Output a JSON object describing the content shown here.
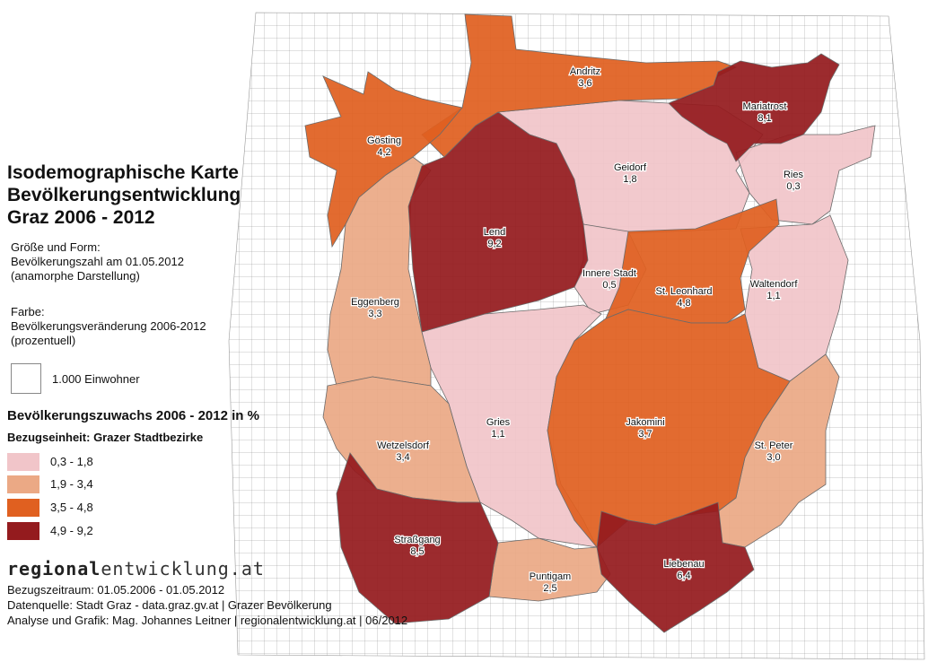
{
  "title": {
    "line1": "Isodemographische Karte",
    "line2": "Bevölkerungsentwicklung",
    "line3": "Graz 2006 - 2012"
  },
  "size_info": {
    "heading": "Größe und Form:",
    "line1": "Bevölkerungszahl am 01.05.2012",
    "line2": "(anamorphe Darstellung)"
  },
  "color_info": {
    "heading": "Farbe:",
    "line1": "Bevölkerungsveränderung 2006-2012",
    "line2": "(prozentuell)"
  },
  "scale": {
    "label": "1.000 Einwohner"
  },
  "legend": {
    "title": "Bevölkerungszuwachs 2006 - 2012 in %",
    "subtitle": "Bezugseinheit: Grazer Stadtbezirke",
    "classes": [
      {
        "label": "0,3 - 1,8",
        "color": "#f1c5c9"
      },
      {
        "label": "1,9 - 3,4",
        "color": "#eba985"
      },
      {
        "label": "3,5 - 4,8",
        "color": "#e06020"
      },
      {
        "label": "4,9 - 9,2",
        "color": "#941b1e"
      }
    ]
  },
  "brand": {
    "part1": "regional",
    "part2": "entwicklung.at"
  },
  "credits": {
    "period": "Bezugszeitraum: 01.05.2006 - 01.05.2012",
    "source": "Datenquelle: Stadt Graz - data.graz.gv.at | Grazer Bevölkerung",
    "author": "Analyse und Grafik: Mag. Johannes Leitner | regionalentwicklung.at | 06/2012"
  },
  "districts": [
    {
      "id": "andritz",
      "name": "Andritz",
      "value": "3,6",
      "class": 2
    },
    {
      "id": "mariatrost",
      "name": "Mariatrost",
      "value": "8,1",
      "class": 3
    },
    {
      "id": "goesting",
      "name": "Gösting",
      "value": "4,2",
      "class": 2
    },
    {
      "id": "geidorf",
      "name": "Geidorf",
      "value": "1,8",
      "class": 0
    },
    {
      "id": "ries",
      "name": "Ries",
      "value": "0,3",
      "class": 0
    },
    {
      "id": "lend",
      "name": "Lend",
      "value": "9,2",
      "class": 3
    },
    {
      "id": "innere-stadt",
      "name": "Innere Stadt",
      "value": "0,5",
      "class": 0
    },
    {
      "id": "st-leonhard",
      "name": "St. Leonhard",
      "value": "4,8",
      "class": 2
    },
    {
      "id": "waltendorf",
      "name": "Waltendorf",
      "value": "1,1",
      "class": 0
    },
    {
      "id": "eggenberg",
      "name": "Eggenberg",
      "value": "3,3",
      "class": 1
    },
    {
      "id": "gries",
      "name": "Gries",
      "value": "1,1",
      "class": 0
    },
    {
      "id": "jakomini",
      "name": "Jakomini",
      "value": "3,7",
      "class": 2
    },
    {
      "id": "wetzelsdorf",
      "name": "Wetzelsdorf",
      "value": "3,4",
      "class": 1
    },
    {
      "id": "st-peter",
      "name": "St. Peter",
      "value": "3,0",
      "class": 1
    },
    {
      "id": "strassgang",
      "name": "Straßgang",
      "value": "8,5",
      "class": 3
    },
    {
      "id": "puntigam",
      "name": "Puntigam",
      "value": "2,5",
      "class": 1
    },
    {
      "id": "liebenau",
      "name": "Liebenau",
      "value": "6,4",
      "class": 3
    }
  ]
}
